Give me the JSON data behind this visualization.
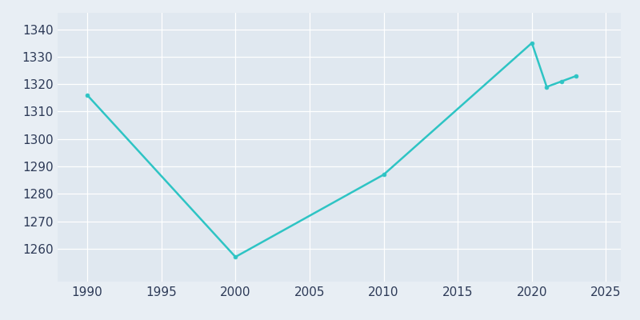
{
  "years": [
    1990,
    2000,
    2010,
    2020,
    2021,
    2022,
    2023
  ],
  "population": [
    1316,
    1257,
    1287,
    1335,
    1319,
    1321,
    1323
  ],
  "line_color": "#2EC4C4",
  "marker_color": "#2EC4C4",
  "bg_color": "#E8EEF4",
  "plot_bg_color": "#E0E8F0",
  "xlim": [
    1988,
    2026
  ],
  "ylim": [
    1248,
    1346
  ],
  "xticks": [
    1990,
    1995,
    2000,
    2005,
    2010,
    2015,
    2020,
    2025
  ],
  "yticks": [
    1260,
    1270,
    1280,
    1290,
    1300,
    1310,
    1320,
    1330,
    1340
  ],
  "tick_label_color": "#2D3A57",
  "grid_color": "#FFFFFF",
  "grid_linewidth": 0.9,
  "linewidth": 1.8,
  "markersize": 3.5
}
